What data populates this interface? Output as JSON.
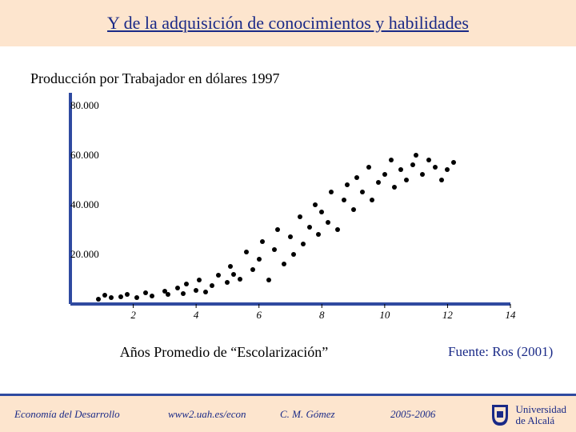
{
  "title": "Y de la adquisición de conocimientos y habilidades",
  "ylabel": "Producción por Trabajador en dólares 1997",
  "xlabel": "Años Promedio de “Escolarización”",
  "source": "Fuente: Ros (2001)",
  "footer": {
    "course": "Economía del Desarrollo",
    "url": "www2.uah.es/econ",
    "author": "C. M. Gómez",
    "year": "2005-2006",
    "uni_line1": "Universidad",
    "uni_line2": "de Alcalá"
  },
  "chart": {
    "type": "scatter",
    "xlim": [
      0,
      14
    ],
    "ylim": [
      0,
      85000
    ],
    "xticks": [
      2,
      4,
      6,
      8,
      10,
      12,
      14
    ],
    "yticks": [
      {
        "v": 20000,
        "label": "20.000"
      },
      {
        "v": 40000,
        "label": "40.000"
      },
      {
        "v": 60000,
        "label": "60.000"
      },
      {
        "v": 80000,
        "label": "80.000"
      }
    ],
    "axis_color": "#2f4aa0",
    "axis_width": 4,
    "background_color": "#ffffff",
    "point_color": "#000000",
    "point_size": 6,
    "tick_fontsize": 13,
    "xtick_style": "italic",
    "data": [
      [
        0.9,
        2000
      ],
      [
        1.1,
        3500
      ],
      [
        1.3,
        2500
      ],
      [
        1.6,
        3000
      ],
      [
        1.8,
        3800
      ],
      [
        2.1,
        2600
      ],
      [
        2.4,
        4500
      ],
      [
        2.6,
        3200
      ],
      [
        3.0,
        5000
      ],
      [
        3.1,
        3800
      ],
      [
        3.4,
        6500
      ],
      [
        3.6,
        4200
      ],
      [
        3.7,
        8000
      ],
      [
        4.0,
        5500
      ],
      [
        4.1,
        9500
      ],
      [
        4.3,
        4800
      ],
      [
        4.5,
        7500
      ],
      [
        4.7,
        11500
      ],
      [
        5.0,
        8800
      ],
      [
        5.1,
        15000
      ],
      [
        5.2,
        12000
      ],
      [
        5.4,
        10000
      ],
      [
        5.6,
        21000
      ],
      [
        5.8,
        14000
      ],
      [
        6.0,
        18000
      ],
      [
        6.1,
        25000
      ],
      [
        6.3,
        9500
      ],
      [
        6.5,
        22000
      ],
      [
        6.6,
        30000
      ],
      [
        6.8,
        16000
      ],
      [
        7.0,
        27000
      ],
      [
        7.1,
        20000
      ],
      [
        7.3,
        35000
      ],
      [
        7.4,
        24000
      ],
      [
        7.6,
        31000
      ],
      [
        7.8,
        40000
      ],
      [
        7.9,
        28000
      ],
      [
        8.0,
        37000
      ],
      [
        8.2,
        33000
      ],
      [
        8.3,
        45000
      ],
      [
        8.5,
        30000
      ],
      [
        8.7,
        42000
      ],
      [
        8.8,
        48000
      ],
      [
        9.0,
        38000
      ],
      [
        9.1,
        51000
      ],
      [
        9.3,
        45000
      ],
      [
        9.5,
        55000
      ],
      [
        9.6,
        42000
      ],
      [
        9.8,
        49000
      ],
      [
        10.0,
        52000
      ],
      [
        10.2,
        58000
      ],
      [
        10.3,
        47000
      ],
      [
        10.5,
        54000
      ],
      [
        10.7,
        50000
      ],
      [
        10.9,
        56000
      ],
      [
        11.0,
        60000
      ],
      [
        11.2,
        52000
      ],
      [
        11.4,
        58000
      ],
      [
        11.6,
        55000
      ],
      [
        11.8,
        50000
      ],
      [
        12.0,
        54000
      ],
      [
        12.2,
        57000
      ]
    ]
  },
  "colors": {
    "title_band": "#fde5ce",
    "footer_band": "#fde5ce",
    "accent": "#1a2a87",
    "line": "#2f4aa0"
  }
}
